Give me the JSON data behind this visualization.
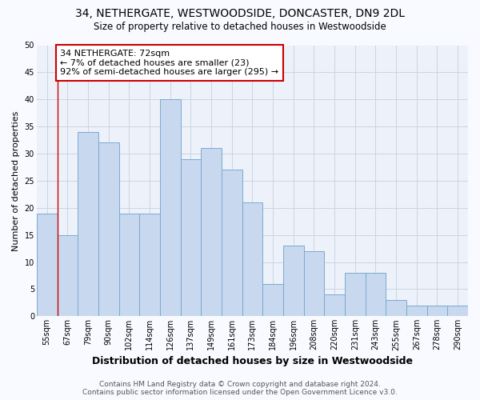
{
  "title": "34, NETHERGATE, WESTWOODSIDE, DONCASTER, DN9 2DL",
  "subtitle": "Size of property relative to detached houses in Westwoodside",
  "xlabel": "Distribution of detached houses by size in Westwoodside",
  "ylabel": "Number of detached properties",
  "categories": [
    "55sqm",
    "67sqm",
    "79sqm",
    "90sqm",
    "102sqm",
    "114sqm",
    "126sqm",
    "137sqm",
    "149sqm",
    "161sqm",
    "173sqm",
    "184sqm",
    "196sqm",
    "208sqm",
    "220sqm",
    "231sqm",
    "243sqm",
    "255sqm",
    "267sqm",
    "278sqm",
    "290sqm"
  ],
  "values": [
    19,
    15,
    34,
    32,
    19,
    19,
    40,
    29,
    31,
    27,
    21,
    6,
    13,
    12,
    4,
    8,
    8,
    3,
    2,
    2,
    2
  ],
  "bar_color": "#c8d8ee",
  "bar_edge_color": "#7aaad0",
  "annotation_text": "34 NETHERGATE: 72sqm\n← 7% of detached houses are smaller (23)\n92% of semi-detached houses are larger (295) →",
  "annotation_box_color": "#ffffff",
  "annotation_box_edge_color": "#cc0000",
  "vline_color": "#cc0000",
  "vline_bar_index": 1,
  "ylim": [
    0,
    50
  ],
  "yticks": [
    0,
    5,
    10,
    15,
    20,
    25,
    30,
    35,
    40,
    45,
    50
  ],
  "footer_text": "Contains HM Land Registry data © Crown copyright and database right 2024.\nContains public sector information licensed under the Open Government Licence v3.0.",
  "bg_color": "#edf2fa",
  "grid_color": "#c5d0e0",
  "fig_bg_color": "#f8faff",
  "title_fontsize": 10,
  "subtitle_fontsize": 8.5,
  "xlabel_fontsize": 9,
  "ylabel_fontsize": 8,
  "tick_fontsize": 7,
  "footer_fontsize": 6.5,
  "annotation_fontsize": 8
}
